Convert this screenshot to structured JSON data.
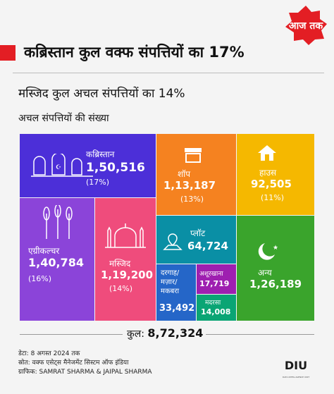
{
  "brand": {
    "logo_text": "आज तक",
    "diu_text": "DIU",
    "diu_small": "DATA INTELLIGENCE UNIT"
  },
  "headline": "कब्रिस्तान कुल वक्फ संपत्तियों का 17%",
  "subheadline": "मस्जिद कुल अचल संपत्तियों का 14%",
  "caption": "अचल संपत्तियों की संख्या",
  "colors": {
    "kabristan": "#4c2fd8",
    "shop": "#f58220",
    "house": "#f5b800",
    "agriculture": "#8b44d9",
    "masjid": "#ef4c7c",
    "plot": "#0a8fa5",
    "anya": "#3aa42c",
    "dargah": "#2566c8",
    "ashrakhana": "#9e1fb0",
    "madrasa": "#0aa574",
    "brand_red": "#e31e24"
  },
  "chart_data": {
    "type": "treemap",
    "unit": "अचल संपत्तियों की संख्या",
    "items": [
      {
        "key": "kabristan",
        "label": "कब्रिस्तान",
        "value": 150516,
        "value_label": "1,50,516",
        "percent": 17,
        "percent_label": "(17%)",
        "icon": "graves-icon"
      },
      {
        "key": "shop",
        "label": "शॉप",
        "value": 113187,
        "value_label": "1,13,187",
        "percent": 13,
        "percent_label": "(13%)",
        "icon": "shop-icon"
      },
      {
        "key": "house",
        "label": "हाउस",
        "value": 92505,
        "value_label": "92,505",
        "percent": 11,
        "percent_label": "(11%)",
        "icon": "house-icon"
      },
      {
        "key": "agriculture",
        "label": "एग्रीकल्चर",
        "value": 140784,
        "value_label": "1,40,784",
        "percent": 16,
        "percent_label": "(16%)",
        "icon": "wheat-icon"
      },
      {
        "key": "masjid",
        "label": "मस्जिद",
        "value": 119200,
        "value_label": "1,19,200",
        "percent": 14,
        "percent_label": "(14%)",
        "icon": "mosque-icon"
      },
      {
        "key": "plot",
        "label": "प्लॉट",
        "value": 64724,
        "value_label": "64,724",
        "icon": "plot-icon"
      },
      {
        "key": "anya",
        "label": "अन्य",
        "value": 126189,
        "value_label": "1,26,189",
        "icon": "crescent-icon"
      },
      {
        "key": "dargah",
        "label": "दरगाह/ मज़ार/ मकबरा",
        "value": 33492,
        "value_label": "33,492"
      },
      {
        "key": "ashrakhana",
        "label": "अशूरखाना",
        "value": 17719,
        "value_label": "17,719"
      },
      {
        "key": "madrasa",
        "label": "मदरसा",
        "value": 14008,
        "value_label": "14,008"
      }
    ],
    "total_label": "कुल:",
    "total_value": "8,72,324"
  },
  "notes": {
    "date": "डेटा: 8 अगस्त 2024 तक",
    "source": "स्रोत: वक्फ एसेट्स मैनेजमेंट सिस्टम ऑफ इंडिया",
    "graphics": "ग्राफिक: SAMRAT SHARMA & JAIPAL SHARMA"
  }
}
